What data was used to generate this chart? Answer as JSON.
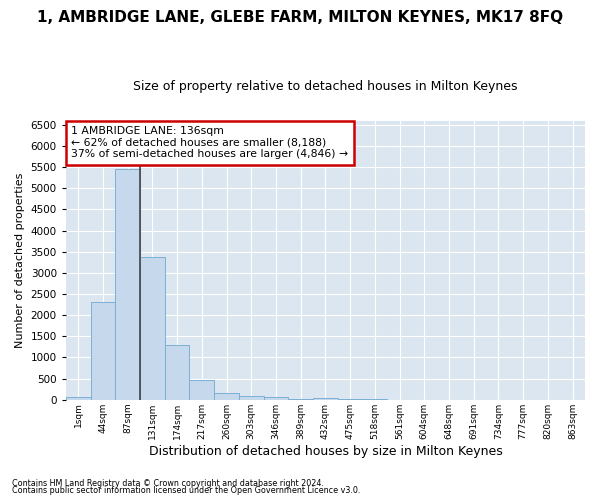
{
  "title": "1, AMBRIDGE LANE, GLEBE FARM, MILTON KEYNES, MK17 8FQ",
  "subtitle": "Size of property relative to detached houses in Milton Keynes",
  "xlabel": "Distribution of detached houses by size in Milton Keynes",
  "ylabel": "Number of detached properties",
  "footer_line1": "Contains HM Land Registry data © Crown copyright and database right 2024.",
  "footer_line2": "Contains public sector information licensed under the Open Government Licence v3.0.",
  "bin_labels": [
    "1sqm",
    "44sqm",
    "87sqm",
    "131sqm",
    "174sqm",
    "217sqm",
    "260sqm",
    "303sqm",
    "346sqm",
    "389sqm",
    "432sqm",
    "475sqm",
    "518sqm",
    "561sqm",
    "604sqm",
    "648sqm",
    "691sqm",
    "734sqm",
    "777sqm",
    "820sqm",
    "863sqm"
  ],
  "bar_values": [
    55,
    2300,
    5450,
    3380,
    1290,
    470,
    160,
    80,
    60,
    30,
    50,
    30,
    10,
    5,
    5,
    3,
    2,
    2,
    1,
    1,
    0
  ],
  "bar_color": "#c6d9ec",
  "bar_edge_color": "#7aafd4",
  "property_bin_index": 3,
  "annotation_title": "1 AMBRIDGE LANE: 136sqm",
  "annotation_line1": "← 62% of detached houses are smaller (8,188)",
  "annotation_line2": "37% of semi-detached houses are larger (4,846) →",
  "annotation_box_color": "#ffffff",
  "annotation_box_edge_color": "#cc0000",
  "property_line_color": "#444444",
  "ylim": [
    0,
    6600
  ],
  "yticks": [
    0,
    500,
    1000,
    1500,
    2000,
    2500,
    3000,
    3500,
    4000,
    4500,
    5000,
    5500,
    6000,
    6500
  ],
  "plot_bg_color": "#dce6f0",
  "outer_bg_color": "#ffffff",
  "grid_color": "#ffffff",
  "title_fontsize": 11,
  "subtitle_fontsize": 9,
  "ylabel_fontsize": 8,
  "xlabel_fontsize": 9
}
